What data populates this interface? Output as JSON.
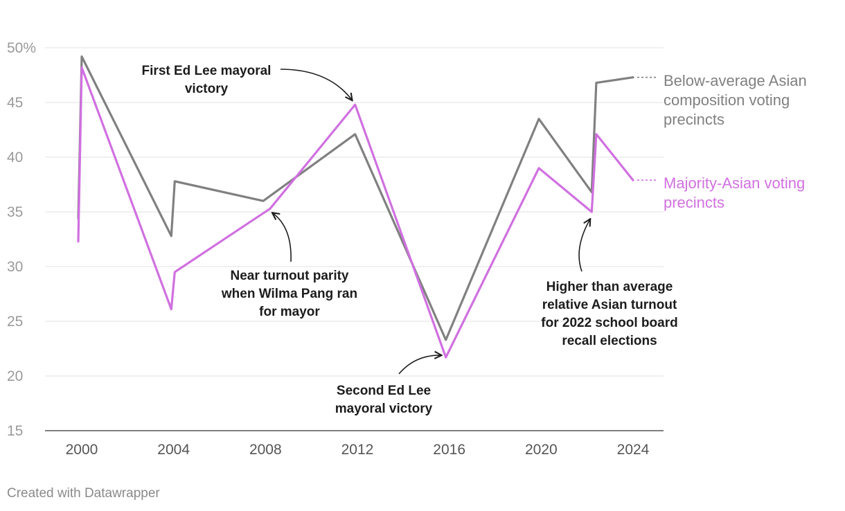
{
  "chart_data": {
    "type": "line",
    "title": "",
    "xlabel": "",
    "ylabel": "",
    "ylim": [
      15,
      50
    ],
    "xlim": [
      1999,
      2026
    ],
    "y_ticks": [
      15,
      20,
      25,
      30,
      35,
      40,
      45,
      50
    ],
    "y_tick_labels": [
      "15",
      "20",
      "25",
      "30",
      "35",
      "40",
      "45",
      "50%"
    ],
    "x_ticks": [
      2000,
      2004,
      2008,
      2012,
      2016,
      2020,
      2024
    ],
    "x_tick_labels": [
      "2000",
      "2004",
      "2008",
      "2012",
      "2016",
      "2020",
      "2024"
    ],
    "grid": true,
    "series": [
      {
        "name": "Below-average Asian composition voting precincts",
        "label_lines": [
          "Below-average Asian",
          "composition voting",
          "precincts"
        ],
        "color": "#808080",
        "points": [
          [
            1999.85,
            34.4
          ],
          [
            2000.0,
            49.2
          ],
          [
            2003.9,
            32.8
          ],
          [
            2004.05,
            37.8
          ],
          [
            2007.9,
            36.0
          ],
          [
            2011.9,
            42.1
          ],
          [
            2015.85,
            23.3
          ],
          [
            2019.9,
            43.5
          ],
          [
            2022.2,
            36.8
          ],
          [
            2022.4,
            46.8
          ],
          [
            2024.0,
            47.3
          ]
        ]
      },
      {
        "name": "Majority-Asian voting precincts",
        "label_lines": [
          "Majority-Asian voting",
          "precincts"
        ],
        "color": "#d070e0",
        "points": [
          [
            1999.85,
            32.3
          ],
          [
            2000.0,
            48.2
          ],
          [
            2003.9,
            26.1
          ],
          [
            2004.05,
            29.5
          ],
          [
            2008.2,
            35.3
          ],
          [
            2011.9,
            44.8
          ],
          [
            2015.85,
            21.7
          ],
          [
            2019.9,
            39.0
          ],
          [
            2022.2,
            35.0
          ],
          [
            2022.4,
            42.1
          ],
          [
            2024.0,
            37.9
          ]
        ]
      }
    ],
    "annotations": [
      {
        "id": "first-ed-lee",
        "lines": [
          "First Ed Lee mayoral",
          "victory"
        ],
        "target": [
          2011.9,
          44.8
        ]
      },
      {
        "id": "wilma-pang",
        "lines": [
          "Near turnout parity",
          "when Wilma Pang ran",
          "for mayor"
        ],
        "target": [
          2008.2,
          35.3
        ]
      },
      {
        "id": "second-ed-lee",
        "lines": [
          "Second Ed Lee",
          "mayoral victory"
        ],
        "target": [
          2015.85,
          21.7
        ]
      },
      {
        "id": "recall-2022",
        "lines": [
          "Higher than average",
          "relative Asian turnout",
          "for 2022 school board",
          "recall elections"
        ],
        "target": [
          2022.2,
          35.0
        ]
      }
    ]
  },
  "credit": "Created with Datawrapper"
}
